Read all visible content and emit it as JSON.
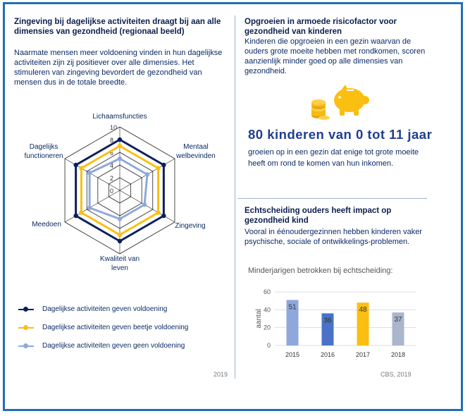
{
  "left": {
    "heading": "Zingeving bij dagelijkse activiteiten draagt bij aan alle dimensies van gezondheid (regionaal beeld)",
    "body": "Naarmate mensen meer voldoening vinden in hun dagelijkse activiteiten zijn zij positiever over alle dimensies. Het stimuleren van zingeving bevordert de gezondheid van mensen dus in de totale breedte.",
    "year": "2019"
  },
  "right_top": {
    "heading": "Opgroeien in armoede risicofactor voor gezondheid van kinderen",
    "body": "Kinderen die opgroeien in een gezin waarvan de ouders grote moeite hebben met rondkomen, scoren aanzienlijk minder goed op alle dimensies van gezondheid.",
    "stat": "80 kinderen van 0 tot 11 jaar",
    "stat_sub": "groeien op in een gezin dat enige tot grote moeite heeft om rond te komen van hun inkomen."
  },
  "right_bottom": {
    "heading": "Echtscheiding ouders heeft impact op gezondheid kind",
    "body": "Vooral in éénoudergezinnen hebben kinderen vaker psychische, sociale of ontwikkelings-problemen.",
    "chart_title": "Minderjarigen betrokken bij echtscheiding:",
    "source": "CBS, 2019"
  },
  "icons": {
    "piggy": "piggy-bank-icon",
    "coins": "coins-icon"
  },
  "chart_data": [
    {
      "type": "radar",
      "axes": [
        "Lichaamsfuncties",
        "Mentaal welbevinden",
        "Zingeving",
        "Kwaliteit van leven",
        "Meedoen",
        "Dagelijks functioneren"
      ],
      "axis_label_lines": [
        [
          "Lichaamsfuncties"
        ],
        [
          "Mentaal",
          "welbevinden"
        ],
        [
          "Zingeving"
        ],
        [
          "Kwaliteit van",
          "leven"
        ],
        [
          "Meedoen"
        ],
        [
          "Dagelijks",
          "functioneren"
        ]
      ],
      "ticks": [
        0,
        2,
        4,
        6,
        8,
        10
      ],
      "range": [
        0,
        10
      ],
      "series": [
        {
          "name": "Dagelijkse activiteiten geven voldoening",
          "color": "#0b1f5e",
          "values": [
            8.0,
            8.0,
            8.0,
            8.0,
            8.0,
            8.0
          ]
        },
        {
          "name": "Dagelijkse activiteiten geven beetje voldoening",
          "color": "#fbbf12",
          "values": [
            7.0,
            7.0,
            7.0,
            7.0,
            7.0,
            7.0
          ]
        },
        {
          "name": "Dagelijkse activiteiten geven geen voldoening",
          "color": "#8fa8dc",
          "values": [
            5.0,
            5.0,
            4.5,
            4.5,
            5.5,
            5.5
          ]
        }
      ]
    },
    {
      "type": "bar",
      "ylabel": "aantal",
      "ylim": [
        0,
        60
      ],
      "yticks": [
        0,
        20,
        40,
        60
      ],
      "categories": [
        "2015",
        "2016",
        "2017",
        "2018"
      ],
      "values": [
        51,
        36,
        48,
        37
      ],
      "colors": [
        "#8fa8dc",
        "#4a72c8",
        "#fbbf12",
        "#aab6cc"
      ]
    }
  ]
}
